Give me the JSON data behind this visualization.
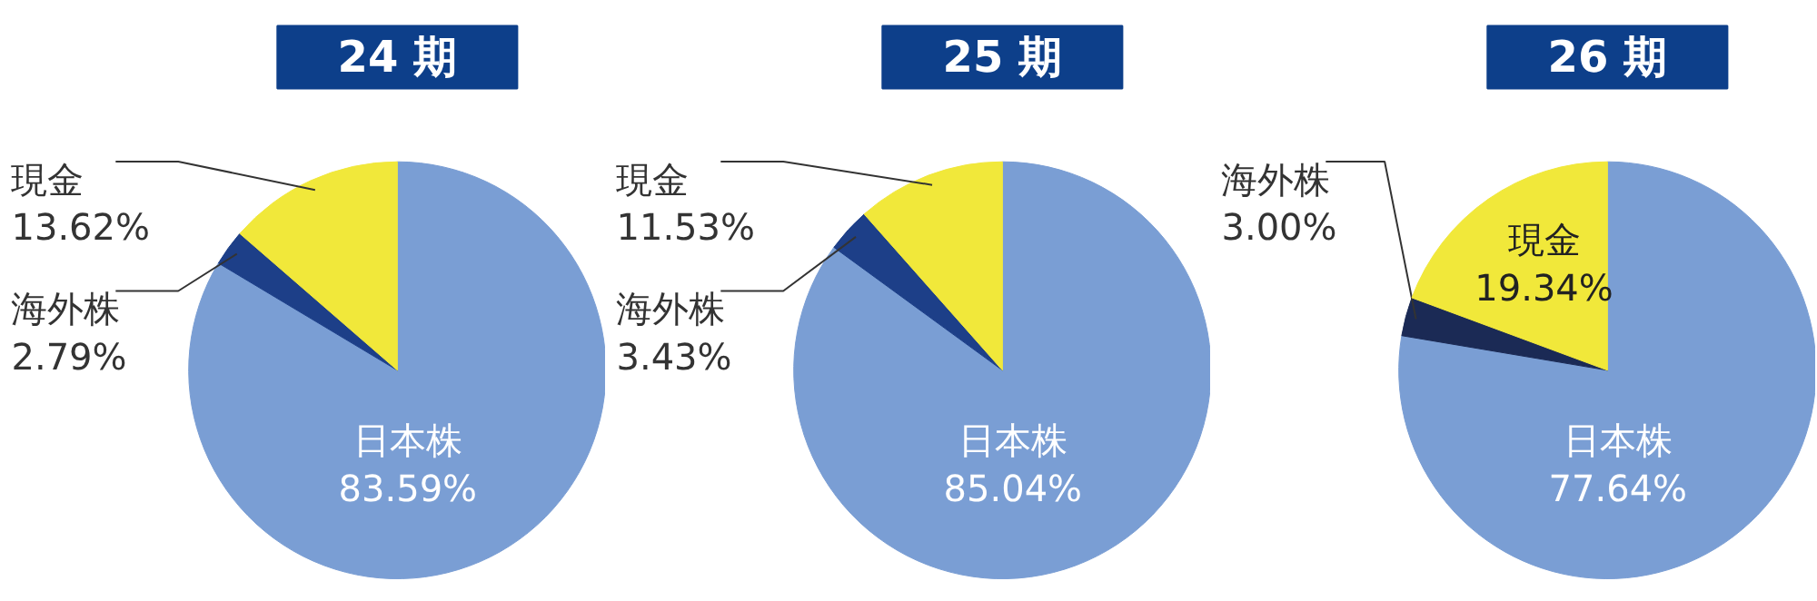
{
  "chart_data": [
    {
      "type": "pie",
      "title": "24 期",
      "categories": [
        "日本株",
        "海外株",
        "現金"
      ],
      "values": [
        83.59,
        2.79,
        13.62
      ],
      "value_labels": [
        "83.59%",
        "2.79%",
        "13.62%"
      ],
      "colors": [
        "#7a9ed4",
        "#1d3f88",
        "#f1e83a"
      ]
    },
    {
      "type": "pie",
      "title": "25 期",
      "categories": [
        "日本株",
        "海外株",
        "現金"
      ],
      "values": [
        85.04,
        3.43,
        11.53
      ],
      "value_labels": [
        "85.04%",
        "3.43%",
        "11.53%"
      ],
      "colors": [
        "#7a9ed4",
        "#1d3f88",
        "#f1e83a"
      ]
    },
    {
      "type": "pie",
      "title": "26 期",
      "categories": [
        "日本株",
        "海外株",
        "現金"
      ],
      "values": [
        77.64,
        3.0,
        19.34
      ],
      "value_labels": [
        "77.64%",
        "3.00%",
        "19.34%"
      ],
      "colors": [
        "#7a9ed4",
        "#1b2a55",
        "#f1e83a"
      ]
    }
  ]
}
